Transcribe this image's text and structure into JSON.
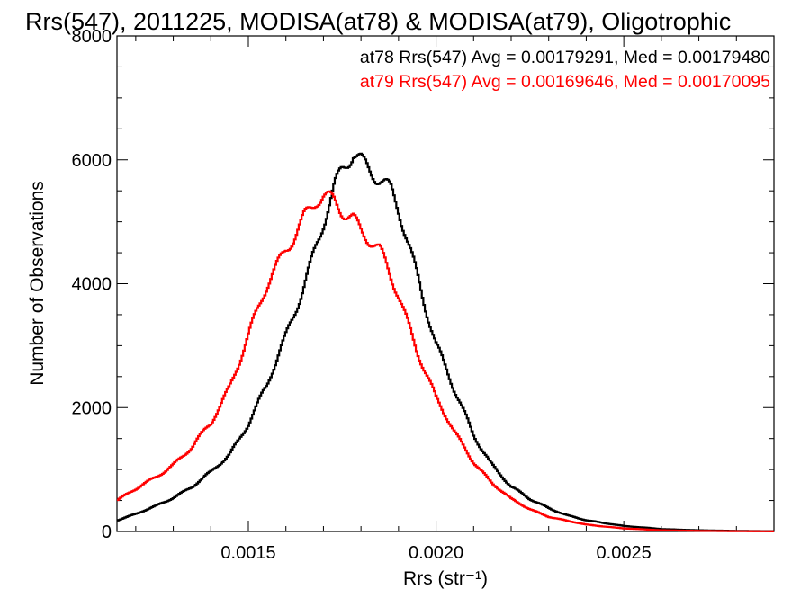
{
  "chart_data": {
    "type": "line",
    "title": "Rrs(547), 2011225, MODISA(at78) & MODISA(at79), Oligotrophic",
    "xlabel": "Rrs (str⁻¹)",
    "ylabel": "Number of Observations",
    "xlim": [
      0.00115,
      0.0029
    ],
    "ylim": [
      0,
      8000
    ],
    "x_ticks": [
      {
        "value": 0.0015,
        "label": "0.0015"
      },
      {
        "value": 0.002,
        "label": "0.0020"
      },
      {
        "value": 0.0025,
        "label": "0.0025"
      }
    ],
    "y_ticks": [
      {
        "value": 0,
        "label": "0"
      },
      {
        "value": 2000,
        "label": "2000"
      },
      {
        "value": 4000,
        "label": "4000"
      },
      {
        "value": 6000,
        "label": "6000"
      },
      {
        "value": 8000,
        "label": "8000"
      }
    ],
    "grid": false,
    "legend_position": "top-right",
    "series": [
      {
        "color": "#000000",
        "annotation": "at78 Rrs(547) Avg = 0.00179291, Med = 0.00179480",
        "x": [
          0.00115,
          0.0012,
          0.00125,
          0.0013,
          0.00135,
          0.0014,
          0.00145,
          0.0015,
          0.00155,
          0.0016,
          0.00165,
          0.0017,
          0.00173,
          0.00175,
          0.00178,
          0.0018,
          0.00183,
          0.00185,
          0.00188,
          0.0019,
          0.00195,
          0.002,
          0.00205,
          0.0021,
          0.00215,
          0.0022,
          0.00225,
          0.0023,
          0.00235,
          0.0024,
          0.0025,
          0.0026,
          0.0027,
          0.0028,
          0.0029
        ],
        "y": [
          180,
          280,
          400,
          550,
          720,
          950,
          1250,
          1750,
          2350,
          3150,
          4050,
          4950,
          5500,
          5800,
          6150,
          6050,
          5850,
          5700,
          5450,
          5150,
          4150,
          3050,
          2250,
          1550,
          1080,
          720,
          520,
          380,
          260,
          180,
          90,
          40,
          20,
          10,
          5
        ]
      },
      {
        "color": "#ff0000",
        "annotation": "at79 Rrs(547) Avg = 0.00169646, Med = 0.00170095",
        "x": [
          0.00115,
          0.0012,
          0.00125,
          0.0013,
          0.00135,
          0.0014,
          0.00145,
          0.0015,
          0.00155,
          0.0016,
          0.00165,
          0.00168,
          0.0017,
          0.00173,
          0.00175,
          0.00178,
          0.0018,
          0.00185,
          0.0019,
          0.00195,
          0.002,
          0.00205,
          0.0021,
          0.00215,
          0.0022,
          0.00225,
          0.0023,
          0.00235,
          0.0024,
          0.0025,
          0.0026,
          0.0027,
          0.0028,
          0.0029
        ],
        "y": [
          500,
          680,
          870,
          1080,
          1350,
          1750,
          2350,
          3150,
          3950,
          4600,
          5100,
          5300,
          5350,
          5300,
          5200,
          5100,
          4900,
          4500,
          3800,
          2950,
          2150,
          1580,
          1130,
          780,
          520,
          360,
          240,
          170,
          110,
          50,
          20,
          10,
          5,
          2
        ]
      }
    ]
  }
}
